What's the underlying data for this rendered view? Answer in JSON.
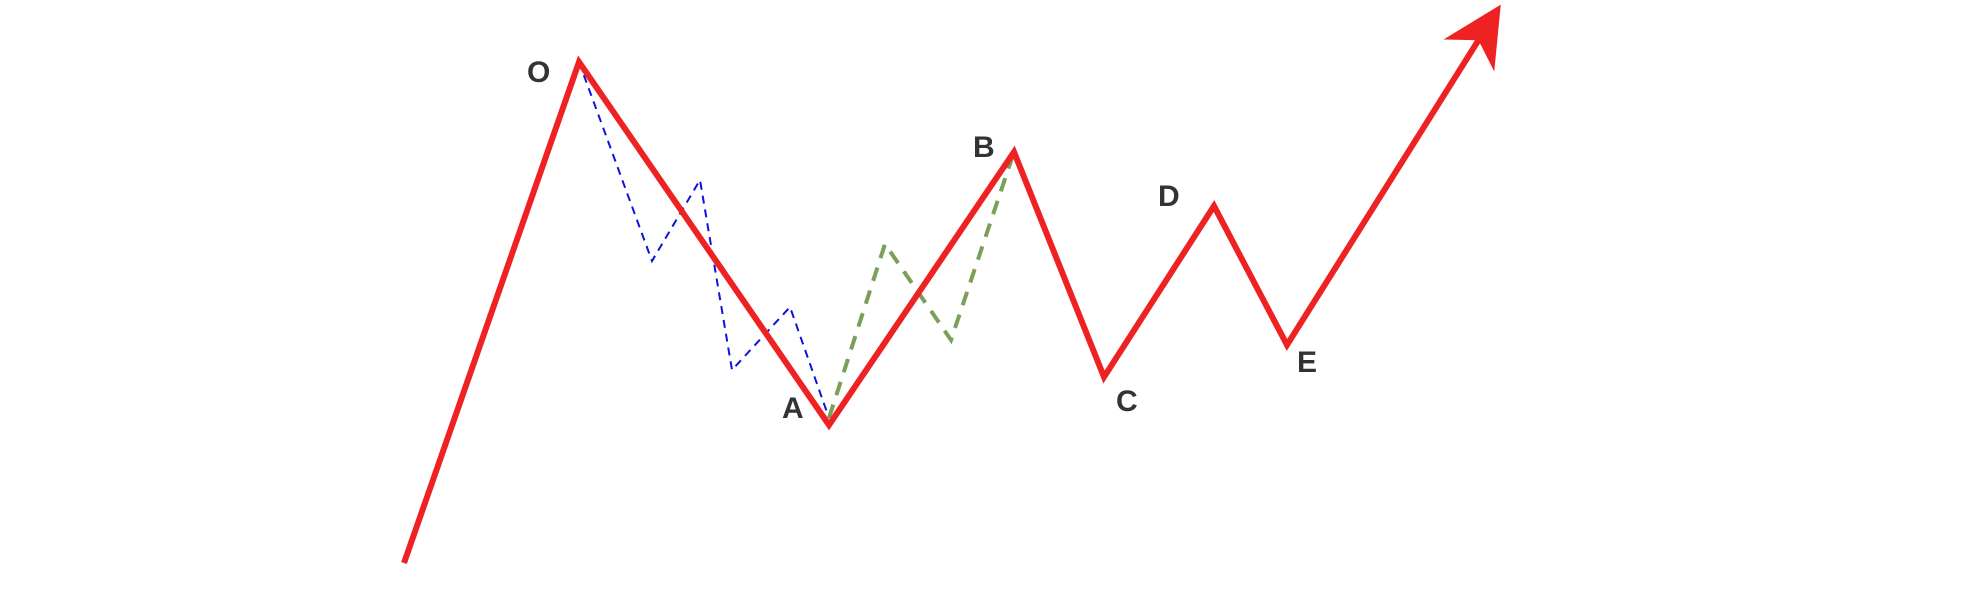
{
  "labels": {
    "o": "O",
    "a": "A",
    "b": "B",
    "c": "C",
    "d": "D",
    "e": "E"
  },
  "colors": {
    "main_wave": "#ee2222",
    "subwave_o_a": "#1111dd",
    "subwave_a_b": "#7a9f58",
    "label_text": "#333333",
    "background": "#ffffff"
  },
  "line_styles": {
    "main_wave": "solid",
    "subwave_o_a": "dashed",
    "subwave_a_b": "dashed"
  },
  "icons": {
    "arrowhead": "arrowhead-icon"
  }
}
